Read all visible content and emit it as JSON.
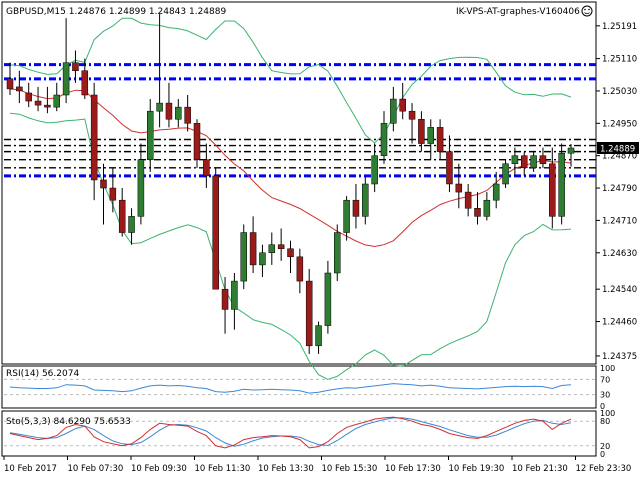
{
  "header": {
    "symbol_info": "GBPUSD,M15  1.24876 1.24899 1.24843 1.24889",
    "ea_label": "IK-VPS-AT-graphes-V160406",
    "smiley_icon": "smiley-icon"
  },
  "price_axis": {
    "ticks": [
      "1.25191",
      "1.25110",
      "1.25030",
      "1.24950",
      "1.24870",
      "1.24790",
      "1.24710",
      "1.24630",
      "1.24540",
      "1.24460",
      "1.24375"
    ],
    "current_price": "1.24889"
  },
  "rsi_panel": {
    "label": "RSI(14) 56.2074",
    "ticks": [
      "100",
      "70",
      "30",
      "0"
    ]
  },
  "stoch_panel": {
    "label": "Sto(5,3,3) 84.6290 75.6533",
    "ticks": [
      "100",
      "80",
      "20",
      "0"
    ]
  },
  "time_axis": {
    "labels": [
      "10 Feb 2017",
      "10 Feb 07:30",
      "10 Feb 09:30",
      "10 Feb 11:30",
      "10 Feb 13:30",
      "10 Feb 15:30",
      "10 Feb 17:30",
      "10 Feb 19:30",
      "10 Feb 21:30",
      "12 Feb 23:30"
    ]
  },
  "colors": {
    "bull": "#2e7d32",
    "bear": "#9b1b1b",
    "bands": "#3cb371",
    "ma": "#d32f2f",
    "rsi": "#3a88d8",
    "stoch_main": "#d32f2f",
    "stoch_signal": "#3a88d8",
    "levels": "#0000ff"
  },
  "chart_data": {
    "type": "candlestick",
    "candles": [
      {
        "o": 1.2506,
        "h": 1.251,
        "l": 1.2502,
        "c": 1.25035
      },
      {
        "o": 1.2504,
        "h": 1.2508,
        "l": 1.25,
        "c": 1.2503
      },
      {
        "o": 1.25025,
        "h": 1.2505,
        "l": 1.2499,
        "c": 1.25005
      },
      {
        "o": 1.25005,
        "h": 1.2504,
        "l": 1.2498,
        "c": 1.24995
      },
      {
        "o": 1.24995,
        "h": 1.2504,
        "l": 1.24975,
        "c": 1.2499
      },
      {
        "o": 1.2499,
        "h": 1.2505,
        "l": 1.2498,
        "c": 1.2502
      },
      {
        "o": 1.2502,
        "h": 1.2521,
        "l": 1.25,
        "c": 1.251
      },
      {
        "o": 1.251,
        "h": 1.2513,
        "l": 1.2505,
        "c": 1.2508
      },
      {
        "o": 1.2508,
        "h": 1.2511,
        "l": 1.2501,
        "c": 1.2502
      },
      {
        "o": 1.2502,
        "h": 1.2505,
        "l": 1.2476,
        "c": 1.2481
      },
      {
        "o": 1.2481,
        "h": 1.2485,
        "l": 1.247,
        "c": 1.2479
      },
      {
        "o": 1.2479,
        "h": 1.2484,
        "l": 1.2473,
        "c": 1.2476
      },
      {
        "o": 1.2476,
        "h": 1.2479,
        "l": 1.2467,
        "c": 1.2468
      },
      {
        "o": 1.2468,
        "h": 1.2474,
        "l": 1.2465,
        "c": 1.2472
      },
      {
        "o": 1.2472,
        "h": 1.249,
        "l": 1.247,
        "c": 1.2486
      },
      {
        "o": 1.2486,
        "h": 1.2501,
        "l": 1.2483,
        "c": 1.2498
      },
      {
        "o": 1.2498,
        "h": 1.2522,
        "l": 1.2494,
        "c": 1.25
      },
      {
        "o": 1.25,
        "h": 1.2505,
        "l": 1.2494,
        "c": 1.2496
      },
      {
        "o": 1.2496,
        "h": 1.2501,
        "l": 1.2494,
        "c": 1.2499
      },
      {
        "o": 1.2499,
        "h": 1.2502,
        "l": 1.2493,
        "c": 1.2495
      },
      {
        "o": 1.2495,
        "h": 1.2496,
        "l": 1.2484,
        "c": 1.2486
      },
      {
        "o": 1.2486,
        "h": 1.249,
        "l": 1.2479,
        "c": 1.2482
      },
      {
        "o": 1.2482,
        "h": 1.2484,
        "l": 1.2454,
        "c": 1.2454
      },
      {
        "o": 1.2454,
        "h": 1.2457,
        "l": 1.2443,
        "c": 1.2449
      },
      {
        "o": 1.2449,
        "h": 1.2458,
        "l": 1.2444,
        "c": 1.2456
      },
      {
        "o": 1.2456,
        "h": 1.247,
        "l": 1.2454,
        "c": 1.2468
      },
      {
        "o": 1.2468,
        "h": 1.2472,
        "l": 1.2458,
        "c": 1.246
      },
      {
        "o": 1.246,
        "h": 1.2465,
        "l": 1.2457,
        "c": 1.2463
      },
      {
        "o": 1.2463,
        "h": 1.2468,
        "l": 1.246,
        "c": 1.2465
      },
      {
        "o": 1.2465,
        "h": 1.2469,
        "l": 1.2461,
        "c": 1.2464
      },
      {
        "o": 1.2464,
        "h": 1.2466,
        "l": 1.2458,
        "c": 1.2462
      },
      {
        "o": 1.2462,
        "h": 1.2464,
        "l": 1.2453,
        "c": 1.2456
      },
      {
        "o": 1.2456,
        "h": 1.2459,
        "l": 1.2438,
        "c": 1.244
      },
      {
        "o": 1.244,
        "h": 1.2446,
        "l": 1.2438,
        "c": 1.2445
      },
      {
        "o": 1.2445,
        "h": 1.2461,
        "l": 1.2443,
        "c": 1.2458
      },
      {
        "o": 1.2458,
        "h": 1.247,
        "l": 1.2456,
        "c": 1.2468
      },
      {
        "o": 1.2468,
        "h": 1.2477,
        "l": 1.2466,
        "c": 1.2476
      },
      {
        "o": 1.2476,
        "h": 1.248,
        "l": 1.2469,
        "c": 1.2472
      },
      {
        "o": 1.2472,
        "h": 1.2482,
        "l": 1.247,
        "c": 1.248
      },
      {
        "o": 1.248,
        "h": 1.249,
        "l": 1.2478,
        "c": 1.2487
      },
      {
        "o": 1.2487,
        "h": 1.2498,
        "l": 1.2485,
        "c": 1.2495
      },
      {
        "o": 1.2495,
        "h": 1.2504,
        "l": 1.2493,
        "c": 1.2501
      },
      {
        "o": 1.2501,
        "h": 1.2505,
        "l": 1.2496,
        "c": 1.2498
      },
      {
        "o": 1.2498,
        "h": 1.25,
        "l": 1.249,
        "c": 1.2496
      },
      {
        "o": 1.2496,
        "h": 1.2498,
        "l": 1.2488,
        "c": 1.249
      },
      {
        "o": 1.249,
        "h": 1.2496,
        "l": 1.2486,
        "c": 1.2494
      },
      {
        "o": 1.2494,
        "h": 1.2496,
        "l": 1.2486,
        "c": 1.2488
      },
      {
        "o": 1.2488,
        "h": 1.2492,
        "l": 1.2478,
        "c": 1.248
      },
      {
        "o": 1.248,
        "h": 1.2485,
        "l": 1.2474,
        "c": 1.2478
      },
      {
        "o": 1.2478,
        "h": 1.248,
        "l": 1.2472,
        "c": 1.2474
      },
      {
        "o": 1.2474,
        "h": 1.2478,
        "l": 1.247,
        "c": 1.2472
      },
      {
        "o": 1.2472,
        "h": 1.2478,
        "l": 1.2471,
        "c": 1.2476
      },
      {
        "o": 1.2476,
        "h": 1.2483,
        "l": 1.2474,
        "c": 1.248
      },
      {
        "o": 1.248,
        "h": 1.2486,
        "l": 1.2479,
        "c": 1.2485
      },
      {
        "o": 1.2485,
        "h": 1.2489,
        "l": 1.2482,
        "c": 1.2487
      },
      {
        "o": 1.2487,
        "h": 1.2488,
        "l": 1.2482,
        "c": 1.2484
      },
      {
        "o": 1.2484,
        "h": 1.2488,
        "l": 1.2483,
        "c": 1.2487
      },
      {
        "o": 1.2487,
        "h": 1.2489,
        "l": 1.2484,
        "c": 1.2485
      },
      {
        "o": 1.2485,
        "h": 1.2489,
        "l": 1.2469,
        "c": 1.2472
      },
      {
        "o": 1.2472,
        "h": 1.249,
        "l": 1.247,
        "c": 1.24876
      },
      {
        "o": 1.24876,
        "h": 1.24899,
        "l": 1.24843,
        "c": 1.24889
      }
    ],
    "level_lines": [
      1.25095,
      1.2506,
      1.2491,
      1.24895,
      1.2488,
      1.2486,
      1.2484,
      1.2482
    ],
    "ylim": [
      1.2436,
      1.2524
    ],
    "rsi": [
      50,
      48,
      47,
      46,
      46,
      48,
      56,
      55,
      53,
      42,
      41,
      40,
      38,
      40,
      47,
      53,
      55,
      53,
      54,
      52,
      48,
      46,
      38,
      36,
      39,
      44,
      42,
      43,
      44,
      43,
      42,
      40,
      34,
      36,
      41,
      45,
      48,
      47,
      50,
      53,
      56,
      59,
      57,
      56,
      53,
      55,
      52,
      48,
      47,
      46,
      45,
      47,
      49,
      51,
      52,
      51,
      52,
      51,
      46,
      54,
      56
    ],
    "stoch_main": [
      50,
      45,
      40,
      35,
      38,
      45,
      65,
      72,
      68,
      42,
      30,
      25,
      20,
      25,
      40,
      60,
      75,
      72,
      70,
      68,
      55,
      45,
      20,
      15,
      22,
      35,
      40,
      42,
      45,
      44,
      42,
      35,
      15,
      18,
      30,
      50,
      65,
      72,
      78,
      85,
      88,
      90,
      86,
      80,
      72,
      68,
      60,
      50,
      45,
      40,
      38,
      45,
      55,
      65,
      75,
      82,
      85,
      80,
      60,
      75,
      85
    ],
    "stoch_signal": [
      52,
      48,
      44,
      40,
      38,
      40,
      50,
      62,
      68,
      60,
      45,
      32,
      25,
      23,
      28,
      42,
      58,
      70,
      72,
      70,
      64,
      56,
      40,
      27,
      19,
      24,
      32,
      39,
      42,
      44,
      44,
      41,
      31,
      23,
      21,
      33,
      48,
      62,
      72,
      78,
      84,
      88,
      88,
      85,
      79,
      73,
      67,
      59,
      52,
      45,
      41,
      41,
      46,
      55,
      65,
      74,
      80,
      82,
      75,
      72,
      76
    ]
  }
}
